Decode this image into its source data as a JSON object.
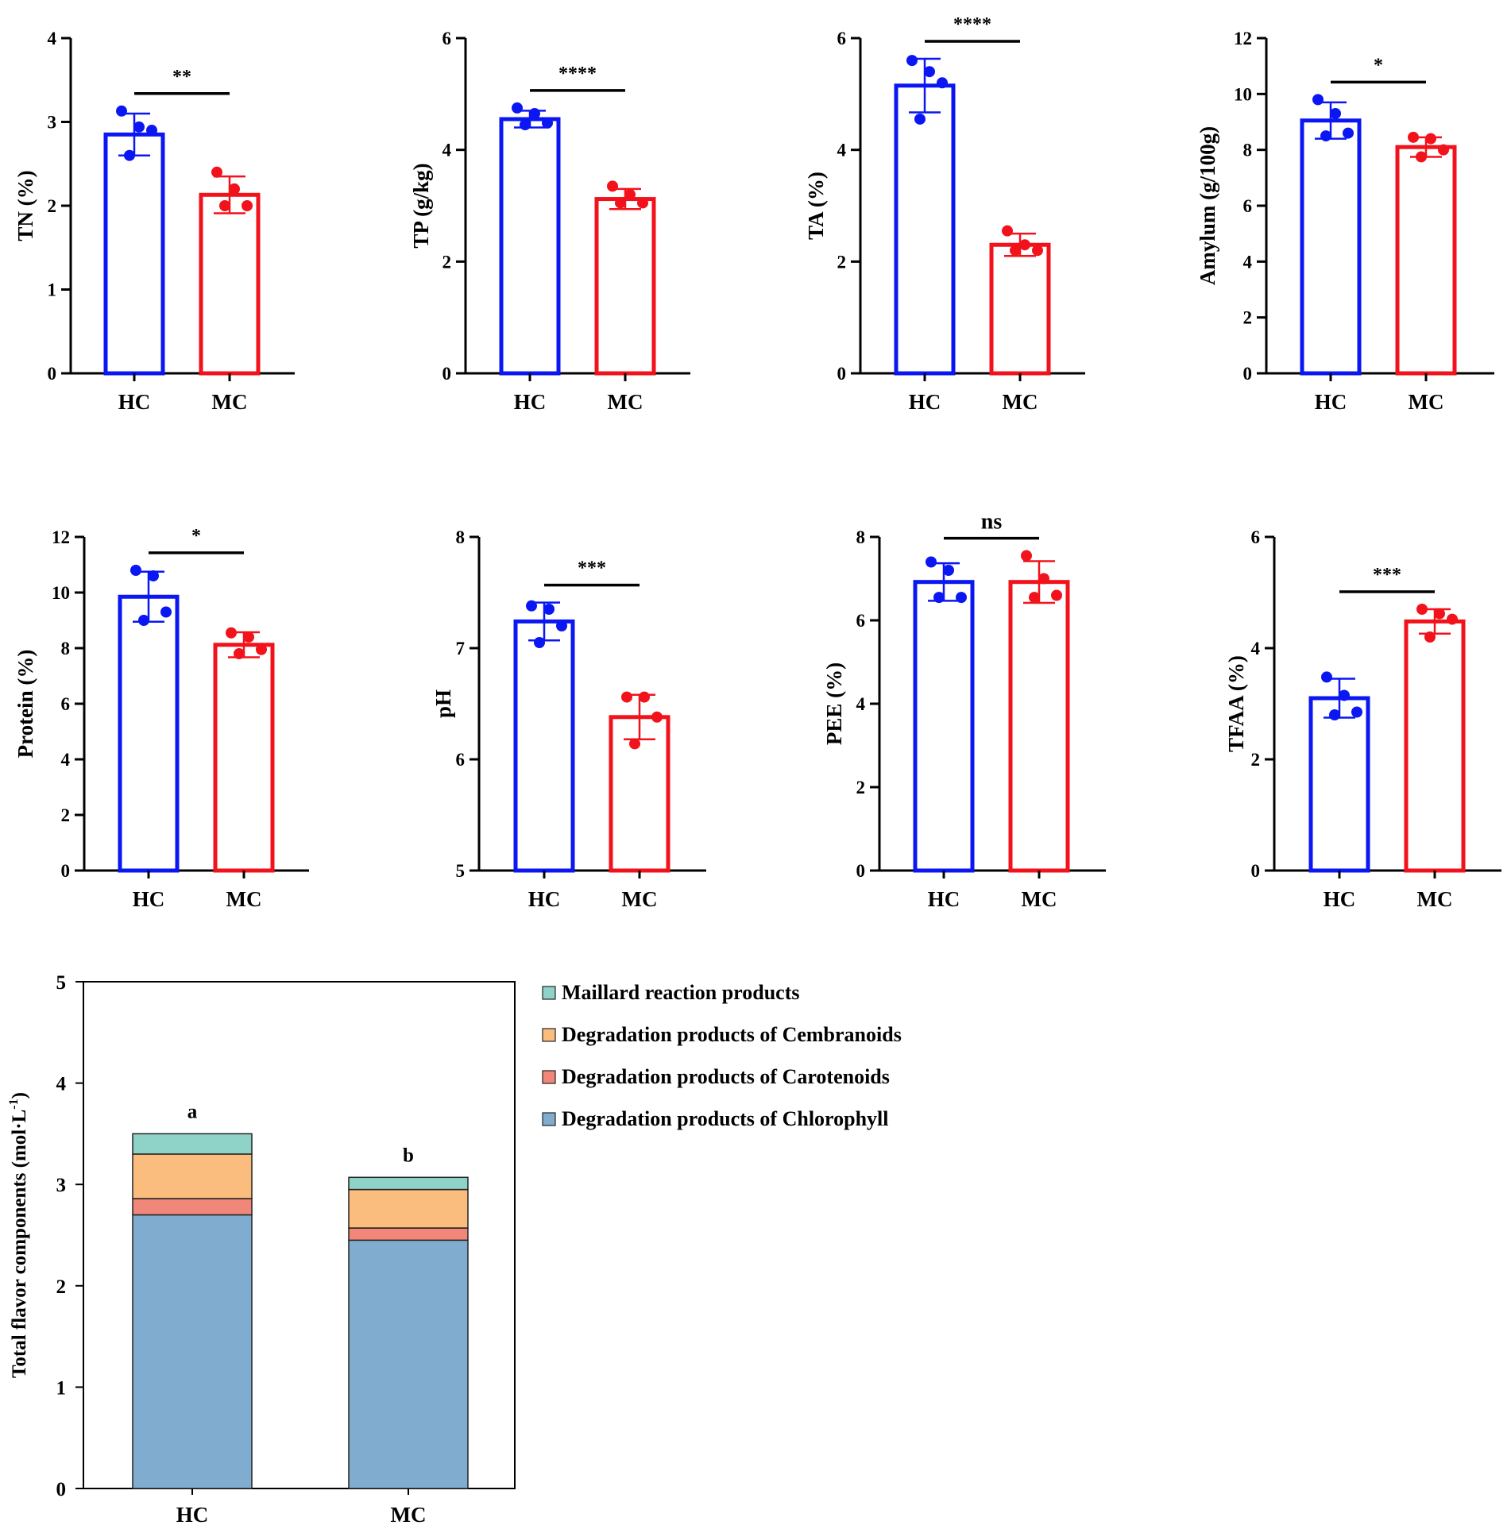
{
  "figure": {
    "colors": {
      "HC": "#0a17f2",
      "MC": "#f2121b",
      "axis": "#000000",
      "maillard": "#8fd3c8",
      "cembranoids": "#fbbd7e",
      "carotenoids": "#f18779",
      "chlorophyll": "#80adcf",
      "stack_outline": "#222222"
    }
  },
  "chart_data": [
    {
      "type": "bar",
      "id": "tn",
      "ylabel": "TN (%)",
      "categories": [
        "HC",
        "MC"
      ],
      "ylim": [
        0,
        4
      ],
      "yticks": [
        "0",
        "1",
        "2",
        "3",
        "4"
      ],
      "values": [
        2.85,
        2.13
      ],
      "sd": [
        0.25,
        0.22
      ],
      "points": [
        [
          3.13,
          2.94,
          2.9,
          2.6
        ],
        [
          2.4,
          2.2,
          2.0,
          2.0
        ]
      ],
      "significance": "**"
    },
    {
      "type": "bar",
      "id": "tp",
      "ylabel": "TP (g/kg)",
      "categories": [
        "HC",
        "MC"
      ],
      "ylim": [
        0,
        6
      ],
      "yticks": [
        "0",
        "2",
        "4",
        "6"
      ],
      "values": [
        4.55,
        3.12
      ],
      "sd": [
        0.15,
        0.18
      ],
      "points": [
        [
          4.75,
          4.65,
          4.48,
          4.45
        ],
        [
          3.35,
          3.2,
          3.05,
          3.05
        ]
      ],
      "significance": "****"
    },
    {
      "type": "bar",
      "id": "ta",
      "ylabel": "TA (%)",
      "categories": [
        "HC",
        "MC"
      ],
      "ylim": [
        0,
        6
      ],
      "yticks": [
        "0",
        "2",
        "4",
        "6"
      ],
      "values": [
        5.15,
        2.3
      ],
      "sd": [
        0.48,
        0.2
      ],
      "points": [
        [
          5.6,
          5.4,
          5.2,
          4.55
        ],
        [
          2.55,
          2.3,
          2.2,
          2.2
        ]
      ],
      "significance": "****"
    },
    {
      "type": "bar",
      "id": "amylum",
      "ylabel": "Amylum (g/100g)",
      "categories": [
        "HC",
        "MC"
      ],
      "ylim": [
        0,
        12
      ],
      "yticks": [
        "0",
        "2",
        "4",
        "6",
        "8",
        "10",
        "12"
      ],
      "values": [
        9.05,
        8.1
      ],
      "sd": [
        0.65,
        0.35
      ],
      "points": [
        [
          9.8,
          9.3,
          8.6,
          8.5
        ],
        [
          8.45,
          8.4,
          8.0,
          7.75
        ]
      ],
      "significance": "*"
    },
    {
      "type": "bar",
      "id": "protein",
      "ylabel": "Protein (%)",
      "categories": [
        "HC",
        "MC"
      ],
      "ylim": [
        0,
        12
      ],
      "yticks": [
        "0",
        "2",
        "4",
        "6",
        "8",
        "10",
        "12"
      ],
      "values": [
        9.85,
        8.12
      ],
      "sd": [
        0.9,
        0.45
      ],
      "points": [
        [
          10.8,
          10.6,
          9.3,
          9.0
        ],
        [
          8.55,
          8.4,
          7.95,
          7.8
        ]
      ],
      "significance": "*"
    },
    {
      "type": "bar",
      "id": "ph",
      "ylabel": "pH",
      "categories": [
        "HC",
        "MC"
      ],
      "ylim": [
        5,
        8
      ],
      "yticks": [
        "5",
        "6",
        "7",
        "8"
      ],
      "values": [
        7.24,
        6.38
      ],
      "sd": [
        0.17,
        0.2
      ],
      "points": [
        [
          7.38,
          7.35,
          7.2,
          7.05
        ],
        [
          6.56,
          6.56,
          6.38,
          6.14
        ]
      ],
      "significance": "***"
    },
    {
      "type": "bar",
      "id": "pee",
      "ylabel": "PEE (%)",
      "categories": [
        "HC",
        "MC"
      ],
      "ylim": [
        0,
        8
      ],
      "yticks": [
        "0",
        "2",
        "4",
        "6",
        "8"
      ],
      "values": [
        6.92,
        6.92
      ],
      "sd": [
        0.45,
        0.5
      ],
      "points": [
        [
          7.4,
          7.2,
          6.55,
          6.55
        ],
        [
          7.55,
          7.0,
          6.6,
          6.55
        ]
      ],
      "significance": "ns"
    },
    {
      "type": "bar",
      "id": "tfaa",
      "ylabel": "TFAA (%)",
      "categories": [
        "HC",
        "MC"
      ],
      "ylim": [
        0,
        6
      ],
      "yticks": [
        "0",
        "2",
        "4",
        "6"
      ],
      "values": [
        3.1,
        4.48
      ],
      "sd": [
        0.35,
        0.22
      ],
      "points": [
        [
          3.48,
          3.15,
          2.85,
          2.8
        ],
        [
          4.7,
          4.62,
          4.52,
          4.2
        ]
      ],
      "significance": "***"
    },
    {
      "type": "stacked-bar",
      "id": "flavor",
      "ylabel": "Total flavor components (mol·L",
      "ylabel_superscript": "-1",
      "ylabel_close": ")",
      "categories": [
        "HC",
        "MC"
      ],
      "ylim": [
        0,
        5
      ],
      "yticks": [
        "0",
        "1",
        "2",
        "3",
        "4",
        "5"
      ],
      "series": [
        {
          "name": "Degradation products of Chlorophyll",
          "key": "chlorophyll",
          "values": [
            2.7,
            2.45
          ]
        },
        {
          "name": "Degradation products of Carotenoids",
          "key": "carotenoids",
          "values": [
            0.16,
            0.12
          ]
        },
        {
          "name": "Degradation products of Cembranoids",
          "key": "cembranoids",
          "values": [
            0.44,
            0.38
          ]
        },
        {
          "name": "Maillard reaction products",
          "key": "maillard",
          "values": [
            0.2,
            0.12
          ]
        }
      ],
      "bar_labels": [
        "a",
        "b"
      ],
      "legend_order": [
        "Maillard reaction products",
        "Degradation products of Cembranoids",
        "Degradation products of Carotenoids",
        "Degradation products of Chlorophyll"
      ],
      "legend_position": "top-right"
    }
  ]
}
